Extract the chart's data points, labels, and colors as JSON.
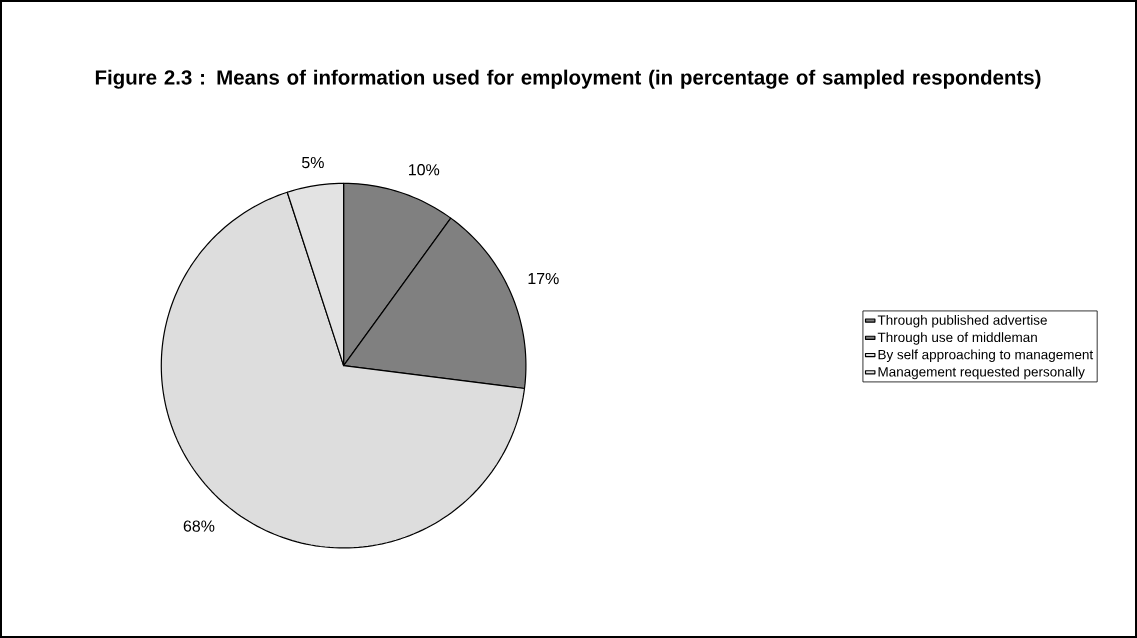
{
  "chart_data": {
    "type": "pie",
    "title": "Figure 2.3 : Means of information used for employment (in percentage of sampled respondents)",
    "categories": [
      "Through published advertise",
      "Through use of middleman",
      "By self approaching to management",
      "Management requested personally"
    ],
    "values": [
      10,
      17,
      68,
      5
    ],
    "value_labels": [
      "10%",
      "17%",
      "68%",
      "5%"
    ],
    "colors": [
      "#808080",
      "#808080",
      "#dddddd",
      "#e3e3e3"
    ],
    "legend": "right"
  }
}
